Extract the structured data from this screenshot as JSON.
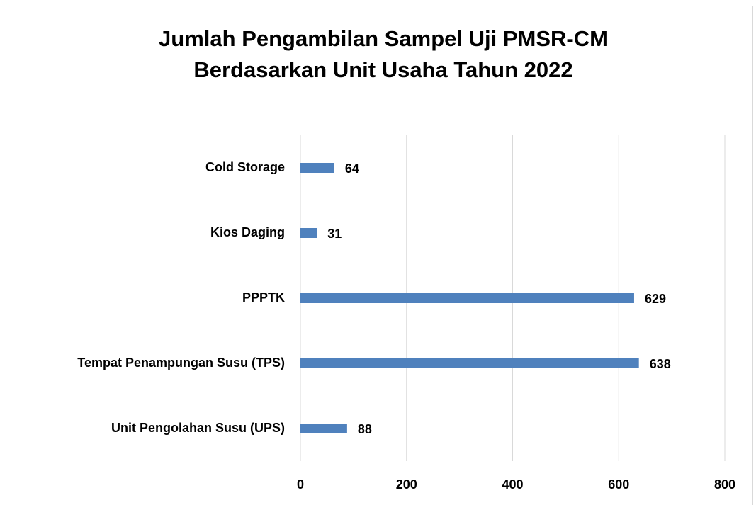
{
  "chart_data": {
    "type": "bar",
    "orientation": "horizontal",
    "title": [
      "Jumlah Pengambilan Sampel Uji PMSR-CM",
      "Berdasarkan Unit Usaha Tahun 2022"
    ],
    "categories": [
      "Cold Storage",
      "Kios Daging",
      "PPPTK",
      "Tempat Penampungan Susu (TPS)",
      "Unit Pengolahan Susu (UPS)"
    ],
    "values": [
      64,
      31,
      629,
      638,
      88
    ],
    "color": "#4f81bd",
    "xlim": [
      0,
      800
    ],
    "xticks": [
      0,
      200,
      400,
      600,
      800
    ],
    "grid": true
  }
}
